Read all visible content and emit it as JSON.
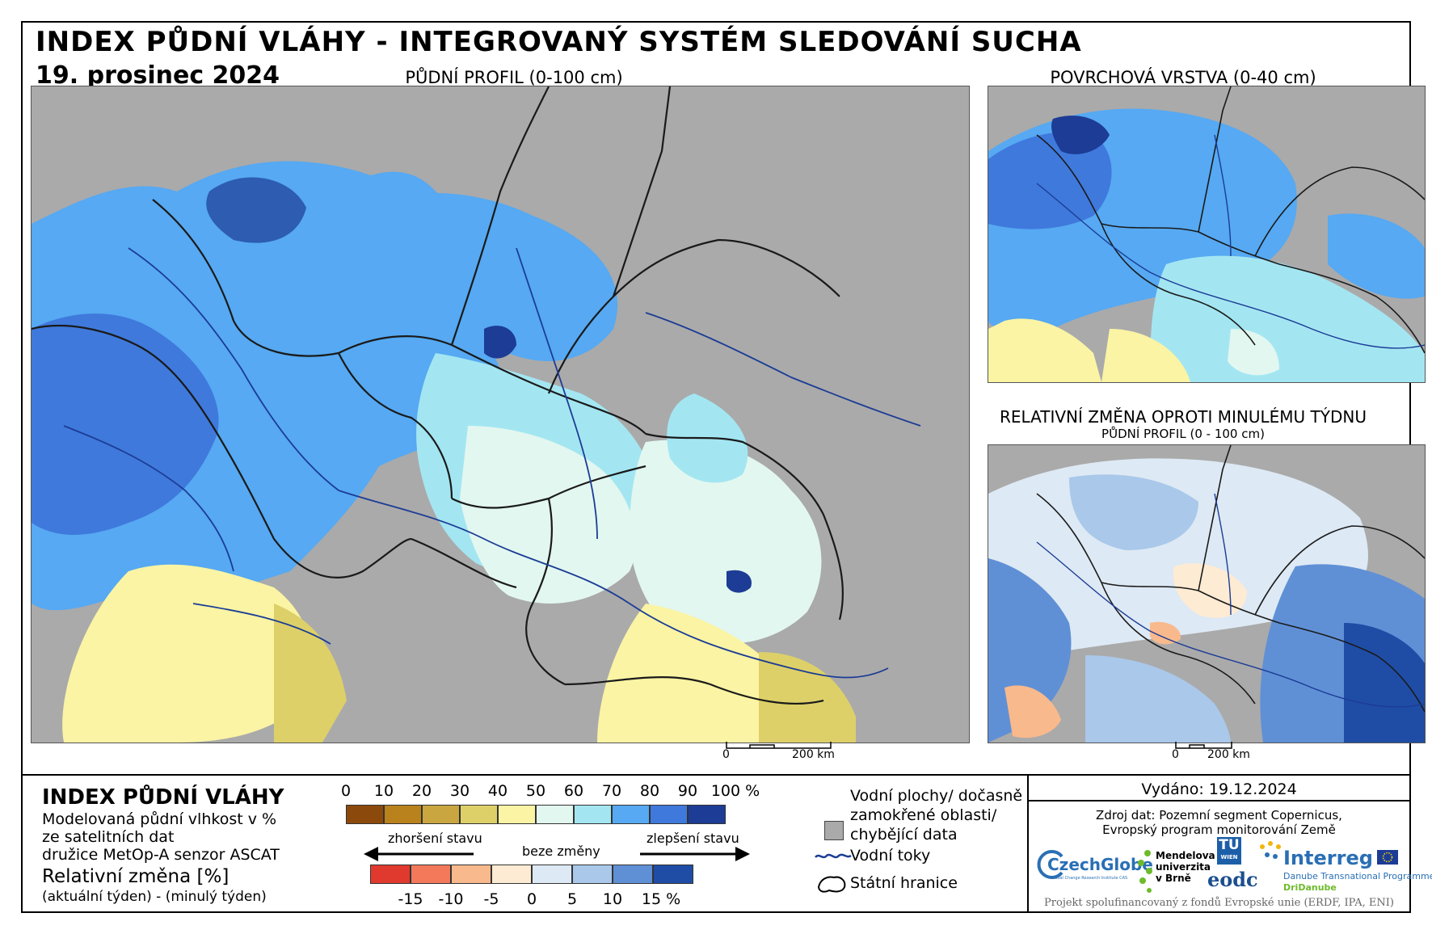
{
  "header": {
    "title": "INDEX PŮDNÍ VLÁHY - INTEGROVANÝ SYSTÉM SLEDOVÁNÍ SUCHA",
    "date": "19. prosinec 2024"
  },
  "maps": {
    "main_caption": "PŮDNÍ PROFIL (0-100 cm)",
    "surface_caption": "POVRCHOVÁ VRSTVA (0-40 cm)",
    "change_caption": "RELATIVNÍ ZMĚNA OPROTI MINULÉMU TÝDNU",
    "change_subcaption": "PŮDNÍ PROFIL (0 - 100 cm)",
    "scale_zero": "0",
    "scale_main": "200 km",
    "scale_small": "200 km"
  },
  "legend": {
    "index_title": "INDEX PŮDNÍ VLÁHY",
    "index_desc_1": "Modelovaná půdní vlhkost v %",
    "index_desc_2": "ze satelitních dat",
    "index_desc_3": "družice MetOp-A senzor ASCAT",
    "change_title": "Relativní změna [%]",
    "change_desc": "(aktuální týden) - (minulý týden)",
    "index_ticks": [
      "0",
      "10",
      "20",
      "30",
      "40",
      "50",
      "60",
      "70",
      "80",
      "90",
      "100 %"
    ],
    "index_colors": [
      "#8b4a0c",
      "#b9821c",
      "#c9a640",
      "#ddd068",
      "#faf4a4",
      "#e2f7f0",
      "#a3e6f2",
      "#56a9f2",
      "#3f79dc",
      "#1c3c95"
    ],
    "change_ticks": [
      "-15",
      "-10",
      "-5",
      "0",
      "5",
      "10",
      "15 %"
    ],
    "change_colors": [
      "#e03a2e",
      "#f3795a",
      "#f8b98c",
      "#fdebd3",
      "#dde9f4",
      "#a9c8ea",
      "#5f90d6",
      "#1f4da6"
    ],
    "worse_label": "zhoršení stavu",
    "nochange_label": "beze změny",
    "better_label": "zlepšení stavu",
    "key_water_1": "Vodní plochy/ dočasně",
    "key_water_2": "zamokřené oblasti/",
    "key_water_3": "chybějící data",
    "key_rivers": "Vodní toky",
    "key_borders": "Státní hranice",
    "key_gray": "#aaaaaa",
    "key_river_color": "#1c3c95"
  },
  "footer": {
    "issued": "Vydáno: 19.12.2024",
    "source_1": "Zdroj dat: Pozemní segment Copernicus,",
    "source_2": "Evropský program monitorování Země",
    "logo_czechglobe": "CzechGlobe",
    "logo_czechglobe_sub": "Global Change Research Institute CAS",
    "logo_mendel_1": "Mendelova",
    "logo_mendel_2": "univerzita",
    "logo_mendel_3": "v Brně",
    "logo_tu_1": "TU",
    "logo_tu_2": "WIEN",
    "logo_eodc": "eodc",
    "logo_interreg": "Interreg",
    "logo_interreg_sub_1": "Danube Transnational Programme",
    "logo_interreg_sub_2": "DriDanube",
    "funding": "Projekt spolufinancovaný z fondů Evropské unie (ERDF, IPA, ENI)"
  }
}
